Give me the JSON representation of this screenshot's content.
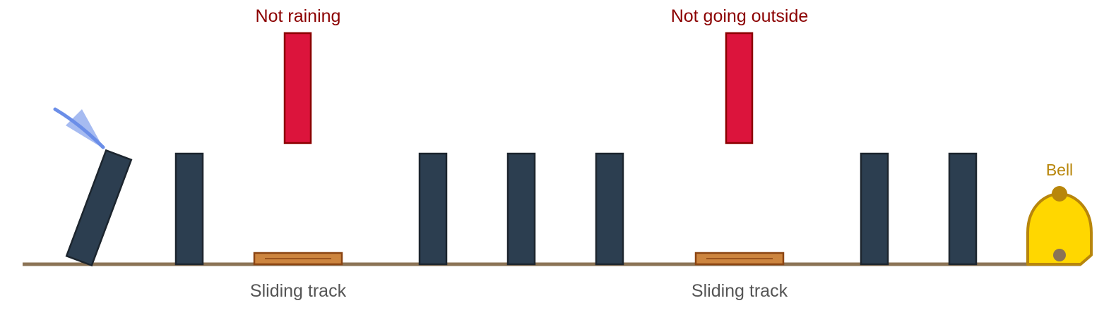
{
  "labels": {
    "gate_left": "Not raining",
    "gate_right": "Not going outside",
    "track_left": "Sliding track",
    "track_right": "Sliding track",
    "bell": "Bell"
  },
  "colors": {
    "ground": "#8b7355",
    "domino": "#2c3e50",
    "domino_stroke": "#1c252e",
    "gate_block": "#dc143c",
    "gate_stroke": "#8b0000",
    "track": "#cd853f",
    "track_stroke": "#8b4513",
    "bell_fill": "#ffd700",
    "bell_stroke": "#b8860b",
    "arrow": "#6b8ee8"
  },
  "icons": {
    "push": "push-arrow-icon",
    "bell": "bell-icon"
  }
}
